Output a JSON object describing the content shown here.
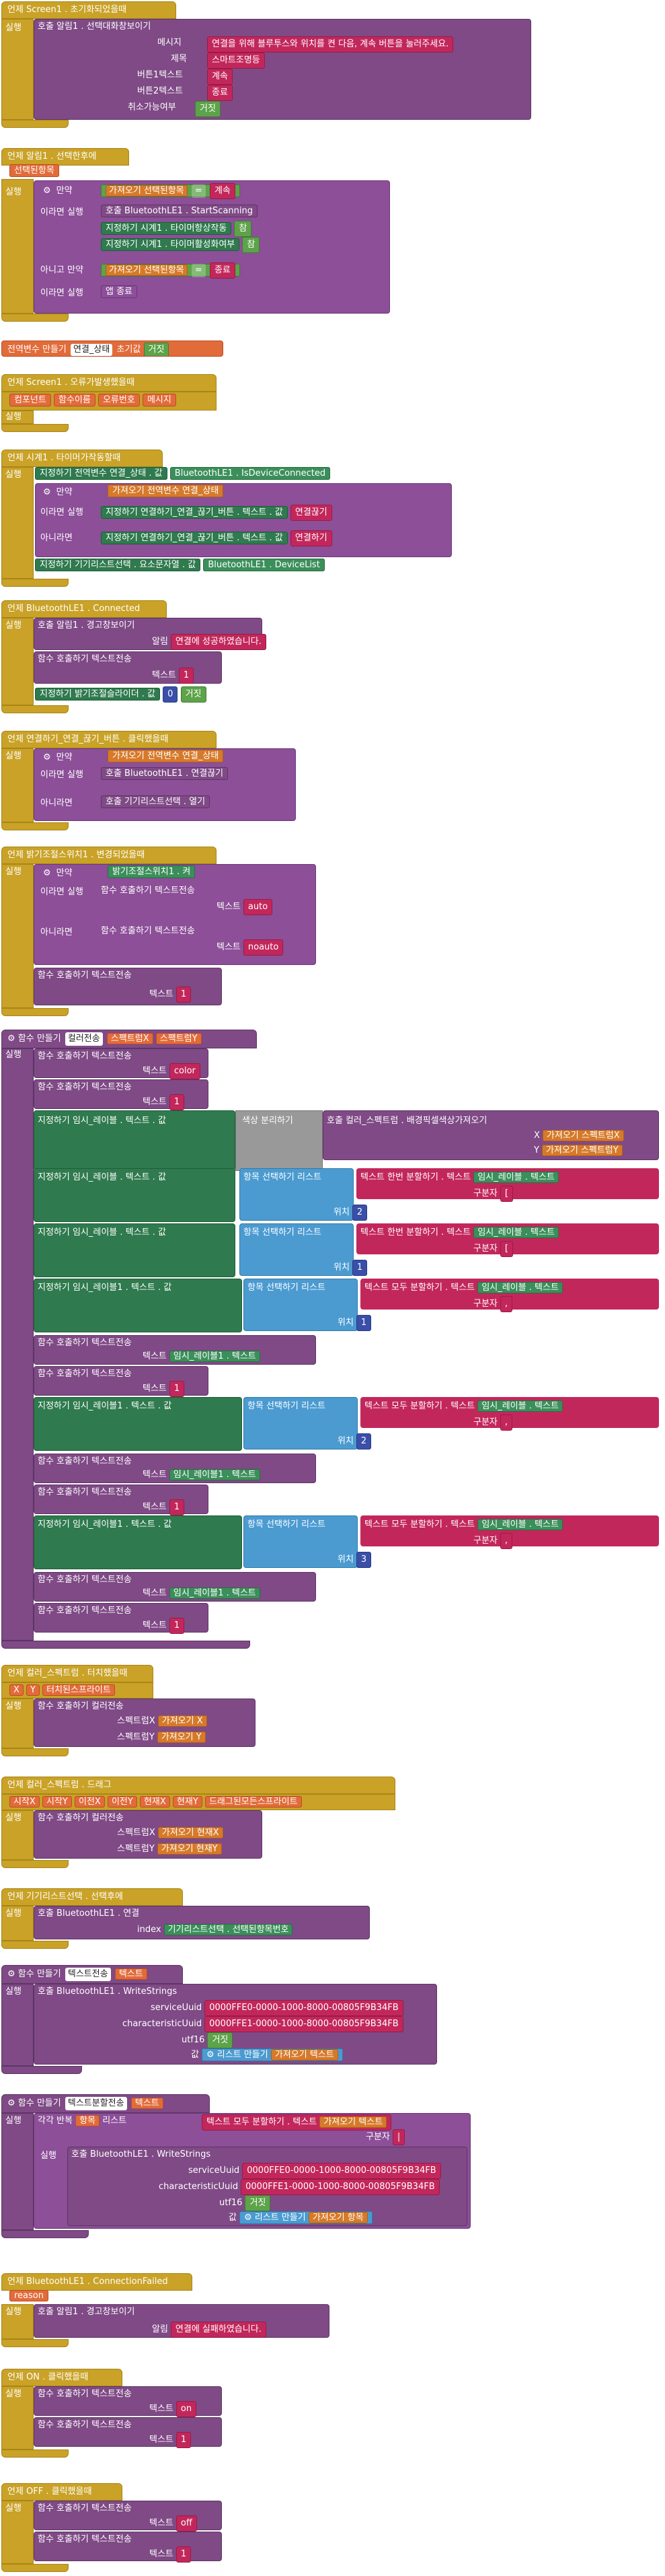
{
  "e1": {
    "head": "언제 Screen1 . 초기화되었을때",
    "run": "실행",
    "call": "호출 알림1 . 선택대화창보이기",
    "lbl_msg": "메시지",
    "msg": "연결을 위해 블루투스와 위치를 켠 다음, 계속 버튼을 눌러주세요.",
    "lbl_title": "제목",
    "title": "스마트조명등",
    "lbl_b1": "버튼1텍스트",
    "b1": "계속",
    "lbl_b2": "버튼2텍스트",
    "b2": "종료",
    "lbl_cancel": "취소가능여부",
    "cancel": "거짓"
  },
  "e2": {
    "head": "언제 알림1 . 선택한후에",
    "param": "선택된항목",
    "run": "실행",
    "if": "만약",
    "get": "가져오기 선택된항목",
    "eq": "=",
    "v1": "계속",
    "then": "이라면 실행",
    "call": "호출 BluetoothLE1 . StartScanning",
    "set1": "지정하기 시계1 . 타이머항상작동",
    "set1v": "참",
    "set2": "지정하기 시계1 . 타이머활성화여부",
    "set2v": "참",
    "elseif": "아니고 만약",
    "v2": "종료",
    "then2": "이라면 실행",
    "close": "앱 종료"
  },
  "g1": {
    "init": "전역변수 만들기",
    "name": "연결_상태",
    "init2": "초기값",
    "val": "거짓"
  },
  "e3": {
    "head": "언제 Screen1 . 오류가발생했을때",
    "p1": "컴포넌트",
    "p2": "함수이름",
    "p3": "오류번호",
    "p4": "메시지",
    "run": "실행"
  },
  "e4": {
    "head": "언제 시계1 . 타이머가작동할때",
    "run": "실행",
    "set": "지정하기 전역변수 연결_상태 . 값",
    "bt": "BluetoothLE1 . IsDeviceConnected",
    "if": "만약",
    "get": "가져오기 전역변수 연결_상태",
    "then": "이라면 실행",
    "s1": "지정하기 연결하기_연결_끊기_버튼 . 텍스트 . 값",
    "s1v": "연결끊기",
    "else": "아니라면",
    "s2": "지정하기 연결하기_연결_끊기_버튼 . 텍스트 . 값",
    "s2v": "연결하기",
    "s3": "지정하기 기기리스트선택 . 요소문자열 . 값",
    "s3v": "BluetoothLE1 . DeviceList"
  },
  "e5": {
    "head": "언제 BluetoothLE1 . Connected",
    "run": "실행",
    "call": "호출 알림1 . 경고창보이기",
    "lbl_msg": "알림",
    "msg": "연결에 성공하였습니다.",
    "fn": "함수 호출하기 텍스트전송",
    "lbl_t": "텍스트",
    "t": "1",
    "set": "지정하기 밝기조절슬라이더 . 값",
    "setv": "0",
    "setv2": "거짓"
  },
  "e6": {
    "head": "언제 연결하기_연결_끊기_버튼 . 클릭했을때",
    "run": "실행",
    "if": "만약",
    "get": "가져오기 전역변수 연결_상태",
    "then": "이라면 실행",
    "call": "호출 BluetoothLE1 . 연결끊기",
    "else": "아니라면",
    "call2": "호출 기기리스트선택 . 열기"
  },
  "e7": {
    "head": "언제 밝기조절스위치1 . 변경되었을때",
    "run": "실행",
    "if": "만약",
    "get": "밝기조절스위치1 . 켜",
    "then": "이라면 실행",
    "fn": "함수 호출하기 텍스트전송",
    "lbl_t": "텍스트",
    "t1": "auto",
    "else": "아니라면",
    "t2": "noauto",
    "t3": "1"
  },
  "f1": {
    "head": "함수 만들기",
    "name": "컬러전송",
    "p1": "스팩트럼X",
    "p2": "스팩트럼Y",
    "run": "실행",
    "fn": "함수 호출하기 텍스트전송",
    "lbl_t": "텍스트",
    "t_color": "color",
    "t1": "1",
    "set_r": "지정하기 임시_레이블 . 텍스트 . 값",
    "split": "색상 분리하기",
    "call_px": "호출 컬러_스펙트럼 . 배경픽셀색상가져오기",
    "lbl_x": "X",
    "lbl_y": "Y",
    "gx": "가져오기 스펙트럼X",
    "gy": "가져오기 스펙트럼Y",
    "pick": "항목 선택하기 리스트",
    "splitfirst": "텍스트 한번 분할하기 . 텍스트",
    "label": "임시_레이블 . 텍스트",
    "lbl_sep": "구분자",
    "sep": "[",
    "lbl_pos": "위치",
    "pos2": "2",
    "pos1": "1",
    "splitall": "텍스트 모두 분할하기 . 텍스트",
    "sep2": ",",
    "label1": "임시_레이블1 . 텍스트",
    "set_r1": "지정하기 임시_레이블1 . 텍스트 . 값",
    "pos3": "3"
  },
  "e8": {
    "head": "언제 컬러_스펙트럼 . 터치했을때",
    "p1": "X",
    "p2": "Y",
    "p3": "터치된스프라이트",
    "run": "실행",
    "fn": "함수 호출하기 컬러전송",
    "lbl_x": "스펙트럼X",
    "gx": "가져오기 X",
    "lbl_y": "스펙트럼Y",
    "gy": "가져오기 Y"
  },
  "e9": {
    "head": "언제 컬러_스펙트럼 . 드래그",
    "p": [
      "시작X",
      "시작Y",
      "이전X",
      "이전Y",
      "현재X",
      "현재Y",
      "드래그된모든스프라이트"
    ],
    "run": "실행",
    "fn": "함수 호출하기 컬러전송",
    "lbl_x": "스펙트럼X",
    "gx": "가져오기 현재X",
    "lbl_y": "스펙트럼Y",
    "gy": "가져오기 현재Y"
  },
  "e10": {
    "head": "언제 기기리스트선택 . 선택후에",
    "run": "실행",
    "call": "호출 BluetoothLE1 . 연결",
    "lbl_idx": "index",
    "idx": "기기리스트선택 . 선택된항목번호"
  },
  "f2": {
    "head": "함수 만들기",
    "name": "텍스트전송",
    "p1": "텍스트",
    "run": "실행",
    "call": "호출 BluetoothLE1 . WriteStrings",
    "lbl_svc": "serviceUuid",
    "svc": "0000FFE0-0000-1000-8000-00805F9B34FB",
    "lbl_ch": "characteristicUuid",
    "ch": "0000FFE1-0000-1000-8000-00805F9B34FB",
    "lbl_utf": "utf16",
    "utf": "거짓",
    "lbl_val": "값",
    "mk": "리스트 만들기",
    "get": "가져오기 텍스트"
  },
  "f3": {
    "head": "함수 만들기",
    "name": "텍스트분할전송",
    "p1": "텍스트",
    "run": "실행",
    "each": "각각 반복",
    "item": "항목",
    "list": "리스트",
    "split": "텍스트 모두 분할하기 . 텍스트",
    "get": "가져오기 텍스트",
    "lbl_sep": "구분자",
    "sep": "|",
    "call": "호출 BluetoothLE1 . WriteStrings",
    "lbl_svc": "serviceUuid",
    "svc": "0000FFE0-0000-1000-8000-00805F9B34FB",
    "lbl_ch": "characteristicUuid",
    "ch": "0000FFE1-0000-1000-8000-00805F9B34FB",
    "lbl_utf": "utf16",
    "utf": "거짓",
    "lbl_val": "값",
    "mk": "리스트 만들기",
    "get2": "가져오기 항목"
  },
  "e11": {
    "head": "언제 BluetoothLE1 . ConnectionFailed",
    "param": "reason",
    "run": "실행",
    "call": "호출 알림1 . 경고창보이기",
    "lbl_msg": "알림",
    "msg": "연결에 실패하였습니다."
  },
  "e12": {
    "head": "언제 ON . 클릭했을때",
    "run": "실행",
    "fn": "함수 호출하기 텍스트전송",
    "lbl_t": "텍스트",
    "t1": "on",
    "t2": "1"
  },
  "e13": {
    "head": "언제 OFF . 클릭했을때",
    "run": "실행",
    "fn": "함수 호출하기 텍스트전송",
    "lbl_t": "텍스트",
    "t1": "off",
    "t2": "1"
  }
}
